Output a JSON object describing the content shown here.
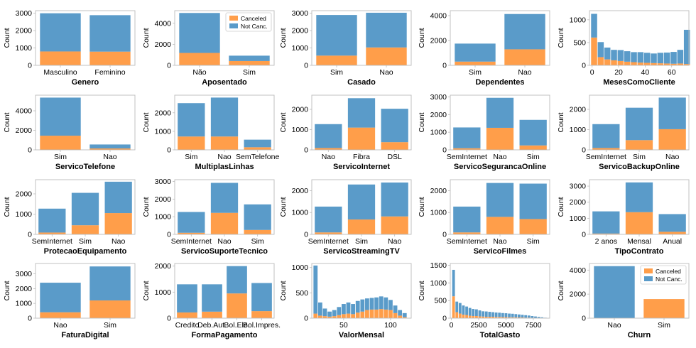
{
  "palette": {
    "canceled": "#ff9e4a",
    "not_canceled": "#5a9bc9",
    "axis": "#bbbbbb",
    "text": "#000000"
  },
  "legend": {
    "canceled": "Canceled",
    "not_canceled": "Not Canc."
  },
  "chart_data": [
    {
      "type": "bar",
      "stacked": true,
      "title": "",
      "xlabel": "Genero",
      "ylabel": "Count",
      "categories": [
        "Masculino",
        "Feminino"
      ],
      "series": [
        {
          "name": "Canceled",
          "values": [
            800,
            790
          ]
        },
        {
          "name": "Not Canc.",
          "values": [
            2200,
            2100
          ]
        }
      ],
      "ylim": [
        0,
        3150
      ],
      "yticks": [
        0,
        1000,
        2000,
        3000
      ],
      "legend": false
    },
    {
      "type": "bar",
      "stacked": true,
      "title": "",
      "xlabel": "Aposentado",
      "ylabel": "Count",
      "categories": [
        "Não",
        "Sim"
      ],
      "series": [
        {
          "name": "Canceled",
          "values": [
            1180,
            410
          ]
        },
        {
          "name": "Not Canc.",
          "values": [
            3800,
            510
          ]
        }
      ],
      "ylim": [
        0,
        5200
      ],
      "yticks": [
        0,
        2000,
        4000
      ],
      "legend": "top-right"
    },
    {
      "type": "bar",
      "stacked": true,
      "title": "",
      "xlabel": "Casado",
      "ylabel": "Count",
      "categories": [
        "Sim",
        "Nao"
      ],
      "series": [
        {
          "name": "Canceled",
          "values": [
            560,
            1030
          ]
        },
        {
          "name": "Not Canc.",
          "values": [
            2340,
            2000
          ]
        }
      ],
      "ylim": [
        0,
        3150
      ],
      "yticks": [
        0,
        1000,
        2000,
        3000
      ],
      "legend": false
    },
    {
      "type": "bar",
      "stacked": true,
      "title": "",
      "xlabel": "Dependentes",
      "ylabel": "Count",
      "categories": [
        "Sim",
        "Nao"
      ],
      "series": [
        {
          "name": "Canceled",
          "values": [
            300,
            1290
          ]
        },
        {
          "name": "Not Canc.",
          "values": [
            1450,
            2840
          ]
        }
      ],
      "ylim": [
        0,
        4400
      ],
      "yticks": [
        0,
        2000,
        4000
      ],
      "legend": false
    },
    {
      "type": "histogram",
      "stacked": true,
      "title": "",
      "xlabel": "MesesComoCliente",
      "ylabel": "Count",
      "x": [
        1.5,
        6.5,
        11.5,
        16.5,
        21.5,
        26.5,
        31.5,
        36.5,
        41.5,
        46.5,
        51.5,
        56.5,
        61.5,
        66.5,
        71.5
      ],
      "bin_width": 5,
      "series": [
        {
          "name": "Canceled",
          "values": [
            610,
            180,
            130,
            110,
            95,
            80,
            70,
            60,
            55,
            50,
            45,
            40,
            35,
            40,
            30
          ]
        },
        {
          "name": "Not Canc.",
          "values": [
            520,
            330,
            260,
            230,
            240,
            230,
            220,
            230,
            220,
            210,
            230,
            240,
            260,
            300,
            750
          ]
        }
      ],
      "xlim": [
        -2,
        73
      ],
      "xticks": [
        0,
        20,
        40,
        60
      ],
      "ylim": [
        0,
        1200
      ],
      "yticks": [
        0,
        500,
        1000
      ],
      "legend": false
    },
    {
      "type": "bar",
      "stacked": true,
      "title": "",
      "xlabel": "ServicoTelefone",
      "ylabel": "Count",
      "categories": [
        "Sim",
        "Nao"
      ],
      "series": [
        {
          "name": "Canceled",
          "values": [
            1450,
            140
          ]
        },
        {
          "name": "Not Canc.",
          "values": [
            3900,
            410
          ]
        }
      ],
      "ylim": [
        0,
        5600
      ],
      "yticks": [
        0,
        2000,
        4000
      ],
      "legend": false
    },
    {
      "type": "bar",
      "stacked": true,
      "title": "",
      "xlabel": "MultiplasLinhas",
      "ylabel": "Count",
      "categories": [
        "Sim",
        "Nao",
        "SemTelefone"
      ],
      "series": [
        {
          "name": "Canceled",
          "values": [
            720,
            720,
            140
          ]
        },
        {
          "name": "Not Canc.",
          "values": [
            1800,
            2100,
            410
          ]
        }
      ],
      "ylim": [
        0,
        2950
      ],
      "yticks": [
        0,
        1000,
        2000
      ],
      "legend": false
    },
    {
      "type": "bar",
      "stacked": true,
      "title": "",
      "xlabel": "ServicoInternet",
      "ylabel": "Count",
      "categories": [
        "Nao",
        "Fibra",
        "DSL"
      ],
      "series": [
        {
          "name": "Canceled",
          "values": [
            90,
            1100,
            380
          ]
        },
        {
          "name": "Not Canc.",
          "values": [
            1180,
            1450,
            1650
          ]
        }
      ],
      "ylim": [
        0,
        2700
      ],
      "yticks": [
        0,
        1000,
        2000
      ],
      "legend": false
    },
    {
      "type": "bar",
      "stacked": true,
      "title": "",
      "xlabel": "ServicoSegurancaOnline",
      "ylabel": "Count",
      "categories": [
        "SemInternet",
        "Nao",
        "Sim"
      ],
      "series": [
        {
          "name": "Canceled",
          "values": [
            90,
            1250,
            250
          ]
        },
        {
          "name": "Not Canc.",
          "values": [
            1180,
            1700,
            1450
          ]
        }
      ],
      "ylim": [
        0,
        3100
      ],
      "yticks": [
        0,
        1000,
        2000,
        3000
      ],
      "legend": false
    },
    {
      "type": "bar",
      "stacked": true,
      "title": "",
      "xlabel": "ServicoBackupOnline",
      "ylabel": "Count",
      "categories": [
        "SemInternet",
        "Sim",
        "Nao"
      ],
      "series": [
        {
          "name": "Canceled",
          "values": [
            90,
            480,
            1020
          ]
        },
        {
          "name": "Not Canc.",
          "values": [
            1180,
            1600,
            1560
          ]
        }
      ],
      "ylim": [
        0,
        2700
      ],
      "yticks": [
        0,
        1000,
        2000
      ],
      "legend": false
    },
    {
      "type": "bar",
      "stacked": true,
      "title": "",
      "xlabel": "ProtecaoEquipamento",
      "ylabel": "Count",
      "categories": [
        "SemInternet",
        "Sim",
        "Nao"
      ],
      "series": [
        {
          "name": "Canceled",
          "values": [
            90,
            450,
            1050
          ]
        },
        {
          "name": "Not Canc.",
          "values": [
            1180,
            1600,
            1550
          ]
        }
      ],
      "ylim": [
        0,
        2700
      ],
      "yticks": [
        0,
        1000,
        2000
      ],
      "legend": false
    },
    {
      "type": "bar",
      "stacked": true,
      "title": "",
      "xlabel": "ServicoSuporteTecnico",
      "ylabel": "Count",
      "categories": [
        "SemInternet",
        "Nao",
        "Sim"
      ],
      "series": [
        {
          "name": "Canceled",
          "values": [
            90,
            1220,
            250
          ]
        },
        {
          "name": "Not Canc.",
          "values": [
            1180,
            1700,
            1450
          ]
        }
      ],
      "ylim": [
        0,
        3100
      ],
      "yticks": [
        0,
        1000,
        2000,
        3000
      ],
      "legend": false
    },
    {
      "type": "bar",
      "stacked": true,
      "title": "",
      "xlabel": "ServicoStreamingTV",
      "ylabel": "Count",
      "categories": [
        "SemInternet",
        "Sim",
        "Nao"
      ],
      "series": [
        {
          "name": "Canceled",
          "values": [
            90,
            680,
            820
          ]
        },
        {
          "name": "Not Canc.",
          "values": [
            1180,
            1600,
            1550
          ]
        }
      ],
      "ylim": [
        0,
        2500
      ],
      "yticks": [
        0,
        1000,
        2000
      ],
      "legend": false
    },
    {
      "type": "bar",
      "stacked": true,
      "title": "",
      "xlabel": "ServicoFilmes",
      "ylabel": "Count",
      "categories": [
        "SemInternet",
        "Nao",
        "Sim"
      ],
      "series": [
        {
          "name": "Canceled",
          "values": [
            90,
            800,
            700
          ]
        },
        {
          "name": "Not Canc.",
          "values": [
            1180,
            1550,
            1620
          ]
        }
      ],
      "ylim": [
        0,
        2500
      ],
      "yticks": [
        0,
        1000,
        2000
      ],
      "legend": false
    },
    {
      "type": "bar",
      "stacked": true,
      "title": "",
      "xlabel": "TipoContrato",
      "ylabel": "Count",
      "categories": [
        "2 anos",
        "Mensal",
        "Anual"
      ],
      "series": [
        {
          "name": "Canceled",
          "values": [
            50,
            1380,
            160
          ]
        },
        {
          "name": "Not Canc.",
          "values": [
            1380,
            1850,
            1100
          ]
        }
      ],
      "ylim": [
        0,
        3400
      ],
      "yticks": [
        0,
        1000,
        2000,
        3000
      ],
      "legend": false
    },
    {
      "type": "bar",
      "stacked": true,
      "title": "",
      "xlabel": "FaturaDigital",
      "ylabel": "Count",
      "categories": [
        "Nao",
        "Sim"
      ],
      "series": [
        {
          "name": "Canceled",
          "values": [
            400,
            1200
          ]
        },
        {
          "name": "Not Canc.",
          "values": [
            2000,
            2300
          ]
        }
      ],
      "ylim": [
        0,
        3700
      ],
      "yticks": [
        0,
        1000,
        2000,
        3000
      ],
      "legend": false
    },
    {
      "type": "bar",
      "stacked": true,
      "title": "",
      "xlabel": "FormaPagamento",
      "ylabel": "Count",
      "categories": [
        "Credito",
        "Deb.Aut.",
        "Bol.Ele.",
        "Bol.Impres."
      ],
      "series": [
        {
          "name": "Canceled",
          "values": [
            220,
            250,
            950,
            270
          ]
        },
        {
          "name": "Not Canc.",
          "values": [
            1080,
            1050,
            1050,
            1080
          ]
        }
      ],
      "ylim": [
        0,
        2100
      ],
      "yticks": [
        0,
        1000,
        2000
      ],
      "legend": false
    },
    {
      "type": "histogram",
      "stacked": true,
      "title": "",
      "xlabel": "ValorMensal",
      "ylabel": "Count",
      "x": [
        20,
        25,
        30,
        35,
        40,
        45,
        50,
        55,
        60,
        65,
        70,
        75,
        80,
        85,
        90,
        95,
        100,
        105,
        110,
        115
      ],
      "bin_width": 5,
      "series": [
        {
          "name": "Canceled",
          "values": [
            90,
            50,
            40,
            30,
            40,
            60,
            80,
            90,
            80,
            110,
            130,
            160,
            170,
            170,
            180,
            170,
            160,
            100,
            50,
            20
          ]
        },
        {
          "name": "Not Canc.",
          "values": [
            950,
            260,
            150,
            100,
            120,
            160,
            200,
            220,
            200,
            230,
            240,
            230,
            230,
            240,
            250,
            240,
            200,
            150,
            110,
            80
          ]
        }
      ],
      "xlim": [
        16,
        122
      ],
      "xticks": [
        50,
        100
      ],
      "ylim": [
        0,
        1080
      ],
      "yticks": [
        0,
        500,
        1000
      ],
      "legend": false
    },
    {
      "type": "histogram",
      "stacked": true,
      "title": "",
      "xlabel": "TotalGasto",
      "ylabel": "Count",
      "x": [
        200,
        500,
        800,
        1100,
        1400,
        1700,
        2000,
        2300,
        2600,
        2900,
        3200,
        3500,
        3800,
        4100,
        4400,
        4700,
        5000,
        5300,
        5600,
        5900,
        6200,
        6500,
        6800,
        7100,
        7400,
        7700,
        8000,
        8300,
        8600
      ],
      "bin_width": 300,
      "series": [
        {
          "name": "Canceled",
          "values": [
            620,
            170,
            130,
            100,
            90,
            70,
            60,
            60,
            50,
            45,
            40,
            40,
            40,
            35,
            35,
            30,
            30,
            25,
            25,
            25,
            20,
            20,
            15,
            15,
            10,
            8,
            5,
            5,
            3
          ]
        },
        {
          "name": "Not Canc.",
          "values": [
            750,
            300,
            300,
            260,
            240,
            220,
            200,
            190,
            170,
            150,
            150,
            140,
            130,
            125,
            120,
            115,
            110,
            105,
            100,
            90,
            85,
            75,
            70,
            60,
            50,
            40,
            30,
            20,
            10
          ]
        }
      ],
      "xlim": [
        -100,
        9000
      ],
      "xticks": [
        0,
        2500,
        5000,
        7500
      ],
      "ylim": [
        0,
        1550
      ],
      "yticks": [
        0,
        500,
        1000,
        1500
      ],
      "legend": false
    },
    {
      "type": "bar",
      "stacked": true,
      "title": "",
      "xlabel": "Churn",
      "ylabel": "Count",
      "categories": [
        "Nao",
        "Sim"
      ],
      "series": [
        {
          "name": "Canceled",
          "values": [
            0,
            1590
          ]
        },
        {
          "name": "Not Canc.",
          "values": [
            4330,
            0
          ]
        }
      ],
      "ylim": [
        0,
        4550
      ],
      "yticks": [
        0,
        2000,
        4000
      ],
      "legend": "top-right"
    }
  ]
}
